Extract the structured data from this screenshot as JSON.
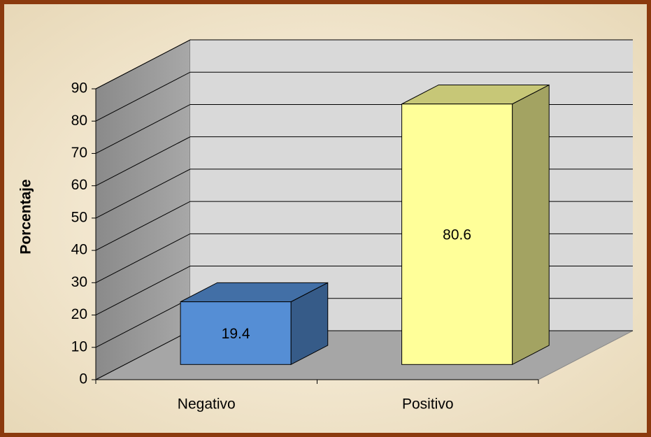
{
  "chart_data": {
    "type": "bar3d",
    "ylabel": "Porcentaje",
    "categories": [
      "Negativo",
      "Positivo"
    ],
    "values": [
      19.4,
      80.6
    ],
    "colors": [
      "#558ed5",
      "#ffff99"
    ],
    "ylim": [
      0,
      90
    ],
    "yticks": [
      0,
      10,
      20,
      30,
      40,
      50,
      60,
      70,
      80,
      90
    ],
    "grid": true
  }
}
